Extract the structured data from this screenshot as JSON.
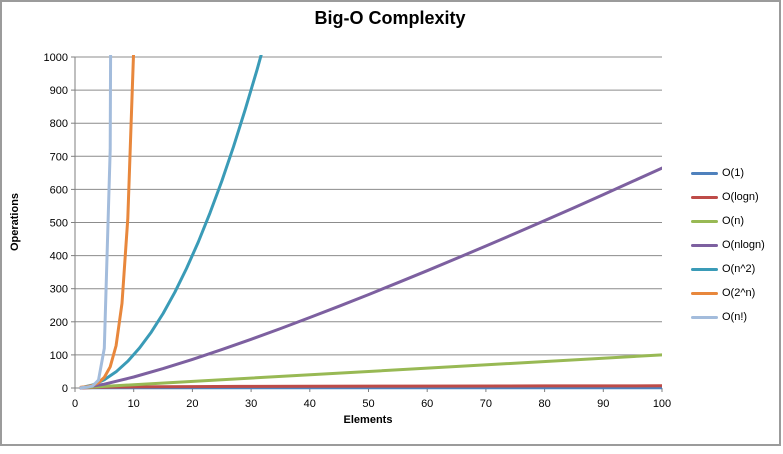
{
  "chart_data": {
    "type": "line",
    "title": "Big-O Complexity",
    "xlabel": "Elements",
    "ylabel": "Operations",
    "xlim": [
      0,
      100
    ],
    "ylim": [
      0,
      1000
    ],
    "x_ticks": [
      0,
      10,
      20,
      30,
      40,
      50,
      60,
      70,
      80,
      90,
      100
    ],
    "y_ticks": [
      0,
      100,
      200,
      300,
      400,
      500,
      600,
      700,
      800,
      900,
      1000
    ],
    "grid": "horizontal-only",
    "legend_position": "right",
    "series": [
      {
        "name": "O(1)",
        "color": "#4F81BD",
        "x": [
          1,
          100
        ],
        "y": [
          1,
          1
        ]
      },
      {
        "name": "O(logn)",
        "color": "#BE4B48",
        "x": [
          1,
          2,
          3,
          4,
          5,
          6,
          8,
          10,
          14,
          20,
          28,
          40,
          56,
          80,
          100
        ],
        "y": [
          0,
          1,
          1.58,
          2,
          2.32,
          2.58,
          3,
          3.32,
          3.81,
          4.32,
          4.81,
          5.32,
          5.81,
          6.32,
          6.64
        ]
      },
      {
        "name": "O(n)",
        "color": "#98B954",
        "x": [
          1,
          100
        ],
        "y": [
          1,
          100
        ]
      },
      {
        "name": "O(nlogn)",
        "color": "#7D60A0",
        "x": [
          1,
          5,
          10,
          15,
          20,
          25,
          30,
          35,
          40,
          45,
          50,
          55,
          60,
          65,
          70,
          75,
          80,
          85,
          90,
          95,
          100
        ],
        "y": [
          0,
          11.6,
          33.2,
          58.6,
          86.4,
          116.1,
          147.2,
          179.5,
          212.9,
          247.2,
          282.2,
          318.0,
          354.4,
          391.4,
          429.1,
          467.2,
          505.8,
          544.8,
          584.3,
          624.1,
          664.4
        ]
      },
      {
        "name": "O(n^2)",
        "color": "#3A9BB7",
        "x": [
          1,
          3,
          5,
          7,
          9,
          11,
          13,
          15,
          17,
          19,
          21,
          23,
          25,
          27,
          29,
          31,
          32
        ],
        "y": [
          1,
          9,
          25,
          49,
          81,
          121,
          169,
          225,
          289,
          361,
          441,
          529,
          625,
          729,
          841,
          961,
          1024
        ]
      },
      {
        "name": "O(2^n)",
        "color": "#E8873C",
        "x": [
          1,
          2,
          3,
          4,
          5,
          6,
          7,
          8,
          9,
          10
        ],
        "y": [
          2,
          4,
          8,
          16,
          32,
          64,
          128,
          256,
          512,
          1024
        ]
      },
      {
        "name": "O(n!)",
        "color": "#A3BCDC",
        "x": [
          1,
          2,
          3,
          4,
          5,
          6,
          7
        ],
        "y": [
          1,
          2,
          6,
          24,
          120,
          720,
          5040
        ]
      }
    ]
  },
  "style_colors": {
    "gridline": "#8C8C8C",
    "axis": "#7F7F7F",
    "frame": "#9B9B9B",
    "text": "#000000"
  }
}
